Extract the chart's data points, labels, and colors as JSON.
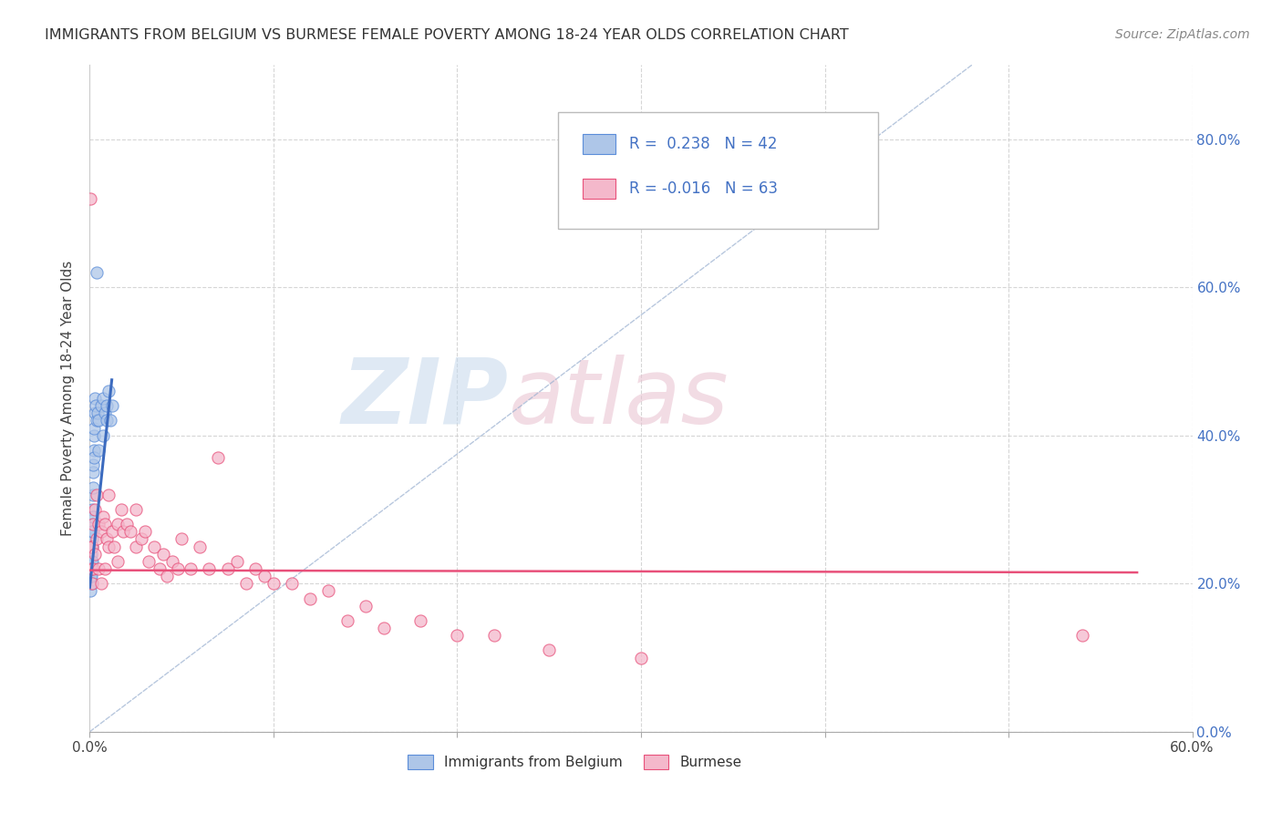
{
  "title": "IMMIGRANTS FROM BELGIUM VS BURMESE FEMALE POVERTY AMONG 18-24 YEAR OLDS CORRELATION CHART",
  "source": "Source: ZipAtlas.com",
  "ylabel": "Female Poverty Among 18-24 Year Olds",
  "blue_color": "#aec6e8",
  "pink_color": "#f4b8cb",
  "blue_edge_color": "#5b8dd9",
  "pink_edge_color": "#e8507a",
  "blue_line_color": "#3c6bbf",
  "pink_line_color": "#e8507a",
  "diag_color": "#9ab0d0",
  "watermark_color": "#c5d8ec",
  "watermark_pink": "#e8c0cf",
  "xlim": [
    0.0,
    0.6
  ],
  "ylim": [
    0.0,
    0.9
  ],
  "ytick_vals": [
    0.0,
    0.2,
    0.4,
    0.6,
    0.8
  ],
  "xtick_vals": [
    0.0,
    0.1,
    0.2,
    0.3,
    0.4,
    0.5,
    0.6
  ],
  "legend_R_blue": "R =  0.238",
  "legend_N_blue": "N = 42",
  "legend_R_pink": "R = -0.016",
  "legend_N_pink": "N = 63",
  "blue_scatter_x": [
    0.0005,
    0.0005,
    0.0006,
    0.0007,
    0.0008,
    0.0009,
    0.001,
    0.001,
    0.001,
    0.0012,
    0.0012,
    0.0013,
    0.0014,
    0.0015,
    0.0015,
    0.0016,
    0.0017,
    0.0018,
    0.002,
    0.002,
    0.002,
    0.0022,
    0.0023,
    0.0025,
    0.0025,
    0.003,
    0.003,
    0.0035,
    0.004,
    0.0045,
    0.005,
    0.005,
    0.006,
    0.007,
    0.007,
    0.008,
    0.009,
    0.009,
    0.01,
    0.011,
    0.012,
    0.004
  ],
  "blue_scatter_y": [
    0.21,
    0.19,
    0.22,
    0.2,
    0.23,
    0.24,
    0.22,
    0.25,
    0.21,
    0.26,
    0.23,
    0.28,
    0.25,
    0.3,
    0.27,
    0.32,
    0.29,
    0.35,
    0.36,
    0.33,
    0.27,
    0.38,
    0.4,
    0.41,
    0.37,
    0.43,
    0.45,
    0.44,
    0.42,
    0.43,
    0.38,
    0.42,
    0.44,
    0.45,
    0.4,
    0.43,
    0.42,
    0.44,
    0.46,
    0.42,
    0.44,
    0.62
  ],
  "pink_scatter_x": [
    0.0005,
    0.0008,
    0.001,
    0.0012,
    0.0015,
    0.002,
    0.002,
    0.003,
    0.003,
    0.004,
    0.004,
    0.005,
    0.005,
    0.006,
    0.006,
    0.007,
    0.008,
    0.008,
    0.009,
    0.01,
    0.01,
    0.012,
    0.013,
    0.015,
    0.015,
    0.017,
    0.018,
    0.02,
    0.022,
    0.025,
    0.025,
    0.028,
    0.03,
    0.032,
    0.035,
    0.038,
    0.04,
    0.042,
    0.045,
    0.048,
    0.05,
    0.055,
    0.06,
    0.065,
    0.07,
    0.075,
    0.08,
    0.085,
    0.09,
    0.095,
    0.1,
    0.11,
    0.12,
    0.13,
    0.14,
    0.15,
    0.16,
    0.18,
    0.2,
    0.22,
    0.25,
    0.3,
    0.54
  ],
  "pink_scatter_y": [
    0.72,
    0.25,
    0.22,
    0.25,
    0.2,
    0.28,
    0.22,
    0.3,
    0.24,
    0.32,
    0.26,
    0.28,
    0.22,
    0.27,
    0.2,
    0.29,
    0.28,
    0.22,
    0.26,
    0.32,
    0.25,
    0.27,
    0.25,
    0.28,
    0.23,
    0.3,
    0.27,
    0.28,
    0.27,
    0.3,
    0.25,
    0.26,
    0.27,
    0.23,
    0.25,
    0.22,
    0.24,
    0.21,
    0.23,
    0.22,
    0.26,
    0.22,
    0.25,
    0.22,
    0.37,
    0.22,
    0.23,
    0.2,
    0.22,
    0.21,
    0.2,
    0.2,
    0.18,
    0.19,
    0.15,
    0.17,
    0.14,
    0.15,
    0.13,
    0.13,
    0.11,
    0.1,
    0.13
  ]
}
